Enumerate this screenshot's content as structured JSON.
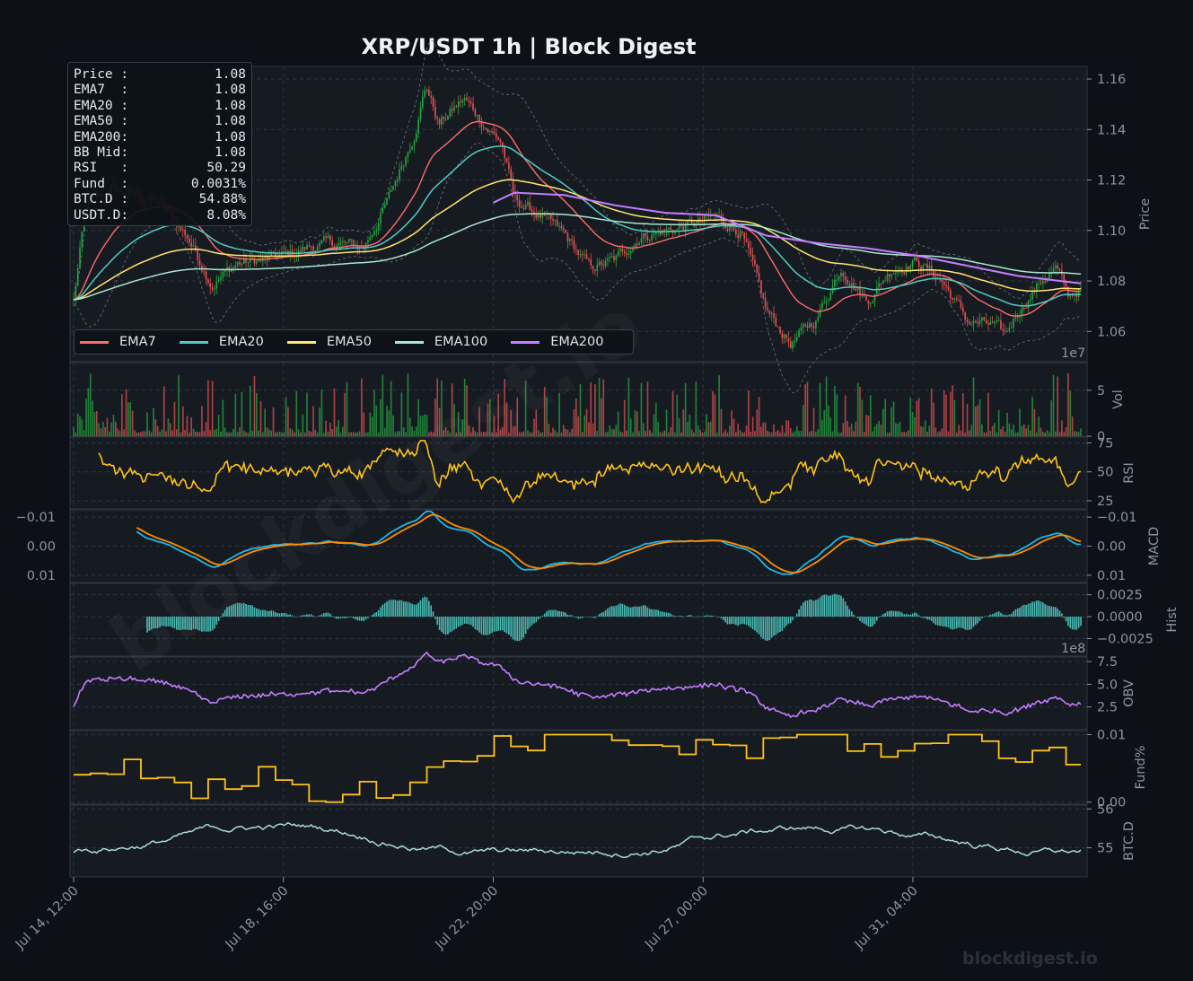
{
  "title": "XRP/USDT  1h  |  Block Digest",
  "info_box": {
    "rows": [
      {
        "label": "Price :",
        "value": "1.08"
      },
      {
        "label": "EMA7  :",
        "value": "1.08"
      },
      {
        "label": "EMA20 :",
        "value": "1.08"
      },
      {
        "label": "EMA50 :",
        "value": "1.08"
      },
      {
        "label": "EMA200:",
        "value": "1.08"
      },
      {
        "label": "BB Mid:",
        "value": "1.08"
      },
      {
        "label": "RSI   :",
        "value": "50.29"
      },
      {
        "label": "Fund  :",
        "value": "0.0031%"
      },
      {
        "label": "BTC.D :",
        "value": "54.88%"
      },
      {
        "label": "USDT.D:",
        "value": "8.08%"
      }
    ]
  },
  "legend": [
    {
      "name": "EMA7",
      "color": "#ff6b6b"
    },
    {
      "name": "EMA20",
      "color": "#4ecdc4"
    },
    {
      "name": "EMA50",
      "color": "#ffe66d"
    },
    {
      "name": "EMA100",
      "color": "#a8e6cf"
    },
    {
      "name": "EMA200",
      "color": "#c77dff"
    }
  ],
  "watermark": "blockdigest.io",
  "colors": {
    "background": "#0d1117",
    "panel": "#161b22",
    "grid": "#2f3540",
    "up": "#26a641",
    "down": "#e05252",
    "rsi": "#ffc21a",
    "macd": "#1fb6e8",
    "signal": "#ff8c00",
    "hist": "#4ecdc4",
    "obv": "#c77dff",
    "funding": "#ffc21a",
    "btcd": "#a8dadc"
  },
  "chart_data": [
    {
      "type": "candlestick",
      "panel": "price",
      "ylabel": "Price",
      "offset_label": "1e7",
      "yticks": [
        1.06,
        1.08,
        1.1,
        1.12,
        1.14,
        1.16
      ],
      "ylim": [
        1.048,
        1.165
      ],
      "x_range": [
        "2023-07-14 12:00",
        "2023-08-03 12:00"
      ],
      "xticks": [
        "Jul 14, 12:00",
        "Jul 18, 16:00",
        "Jul 22, 20:00",
        "Jul 27, 00:00",
        "Jul 31, 04:00"
      ],
      "close_path": [
        [
          "2023-07-14 12:00",
          1.072
        ],
        [
          "2023-07-14 18:00",
          1.11
        ],
        [
          "2023-07-15 06:00",
          1.116
        ],
        [
          "2023-07-15 18:00",
          1.114
        ],
        [
          "2023-07-16 06:00",
          1.11
        ],
        [
          "2023-07-16 18:00",
          1.098
        ],
        [
          "2023-07-17 06:00",
          1.079
        ],
        [
          "2023-07-17 18:00",
          1.087
        ],
        [
          "2023-07-18 06:00",
          1.088
        ],
        [
          "2023-07-18 18:00",
          1.09
        ],
        [
          "2023-07-19 06:00",
          1.094
        ],
        [
          "2023-07-19 18:00",
          1.095
        ],
        [
          "2023-07-20 06:00",
          1.093
        ],
        [
          "2023-07-20 18:00",
          1.112
        ],
        [
          "2023-07-21 06:00",
          1.138
        ],
        [
          "2023-07-21 12:00",
          1.158
        ],
        [
          "2023-07-21 18:00",
          1.142
        ],
        [
          "2023-07-22 06:00",
          1.152
        ],
        [
          "2023-07-22 18:00",
          1.14
        ],
        [
          "2023-07-23 00:00",
          1.135
        ],
        [
          "2023-07-23 06:00",
          1.112
        ],
        [
          "2023-07-23 18:00",
          1.106
        ],
        [
          "2023-07-24 06:00",
          1.098
        ],
        [
          "2023-07-24 18:00",
          1.085
        ],
        [
          "2023-07-25 06:00",
          1.088
        ],
        [
          "2023-07-25 18:00",
          1.098
        ],
        [
          "2023-07-26 06:00",
          1.1
        ],
        [
          "2023-07-26 18:00",
          1.102
        ],
        [
          "2023-07-27 06:00",
          1.105
        ],
        [
          "2023-07-27 18:00",
          1.1
        ],
        [
          "2023-07-28 06:00",
          1.068
        ],
        [
          "2023-07-28 18:00",
          1.055
        ],
        [
          "2023-07-29 06:00",
          1.065
        ],
        [
          "2023-07-29 18:00",
          1.086
        ],
        [
          "2023-07-30 06:00",
          1.072
        ],
        [
          "2023-07-30 18:00",
          1.085
        ],
        [
          "2023-07-31 06:00",
          1.088
        ],
        [
          "2023-07-31 18:00",
          1.08
        ],
        [
          "2023-08-01 06:00",
          1.064
        ],
        [
          "2023-08-01 18:00",
          1.062
        ],
        [
          "2023-08-02 00:00",
          1.058
        ],
        [
          "2023-08-02 06:00",
          1.068
        ],
        [
          "2023-08-02 18:00",
          1.081
        ],
        [
          "2023-08-03 00:00",
          1.085
        ],
        [
          "2023-08-03 06:00",
          1.074
        ],
        [
          "2023-08-03 12:00",
          1.077
        ]
      ],
      "series": [
        {
          "name": "EMA7",
          "lag": 0.5
        },
        {
          "name": "EMA20",
          "lag": 0.25
        },
        {
          "name": "EMA50",
          "lag": 0.12
        },
        {
          "name": "EMA100",
          "lag": 0.06
        },
        {
          "name": "EMA200",
          "points": [
            [
              "2023-07-22 20:00",
              1.111
            ],
            [
              "2023-07-23 06:00",
              1.115
            ],
            [
              "2023-07-24 06:00",
              1.114
            ],
            [
              "2023-07-25 06:00",
              1.11
            ],
            [
              "2023-07-26 06:00",
              1.107
            ],
            [
              "2023-07-27 06:00",
              1.106
            ],
            [
              "2023-07-28 06:00",
              1.098
            ],
            [
              "2023-07-29 06:00",
              1.095
            ],
            [
              "2023-07-30 06:00",
              1.093
            ],
            [
              "2023-07-31 06:00",
              1.09
            ],
            [
              "2023-08-01 06:00",
              1.086
            ],
            [
              "2023-08-02 06:00",
              1.082
            ],
            [
              "2023-08-03 12:00",
              1.079
            ]
          ]
        }
      ],
      "bollinger": {
        "name": "BB",
        "width": 0.012
      }
    },
    {
      "type": "bar",
      "panel": "volume",
      "ylabel": "Vol",
      "yticks": [
        0,
        5
      ],
      "ylim": [
        0,
        8
      ],
      "unit_scale": "1e7"
    },
    {
      "type": "line",
      "panel": "rsi",
      "ylabel": "RSI",
      "yticks": [
        25,
        50,
        75
      ],
      "ylim": [
        18,
        80
      ]
    },
    {
      "type": "line",
      "panel": "macd",
      "ylabel": "MACD",
      "yticks": [
        -0.01,
        0.0,
        0.01
      ],
      "ylim": [
        -0.0125,
        0.0125
      ],
      "left_ticks": [
        "0.01",
        "0.00",
        "−0.01"
      ],
      "series": [
        {
          "name": "MACD"
        },
        {
          "name": "Signal"
        }
      ]
    },
    {
      "type": "bar",
      "panel": "hist",
      "ylabel": "Hist",
      "yticks": [
        0.0025,
        0.0,
        -0.0025
      ],
      "ylim": [
        -0.0045,
        0.0038
      ],
      "tick_labels": [
        "0.0025",
        "0.0000",
        "−0.0025"
      ],
      "offset_label": "1e8"
    },
    {
      "type": "line",
      "panel": "obv",
      "ylabel": "OBV",
      "yticks": [
        2.5,
        5.0,
        7.5
      ],
      "ylim": [
        0,
        8.0
      ],
      "tick_labels": [
        "2.5",
        "5.0",
        "7.5"
      ]
    },
    {
      "type": "step",
      "panel": "funding",
      "ylabel": "Fund%",
      "yticks": [
        0.0,
        0.01
      ],
      "ylim": [
        -0.0003,
        0.0106
      ],
      "tick_labels": [
        "0.00",
        "0.01"
      ]
    },
    {
      "type": "line",
      "panel": "btcd",
      "ylabel": "BTC.D",
      "yticks": [
        55,
        56
      ],
      "ylim": [
        54.25,
        56.1
      ],
      "tick_labels": [
        "55",
        "56"
      ]
    }
  ]
}
